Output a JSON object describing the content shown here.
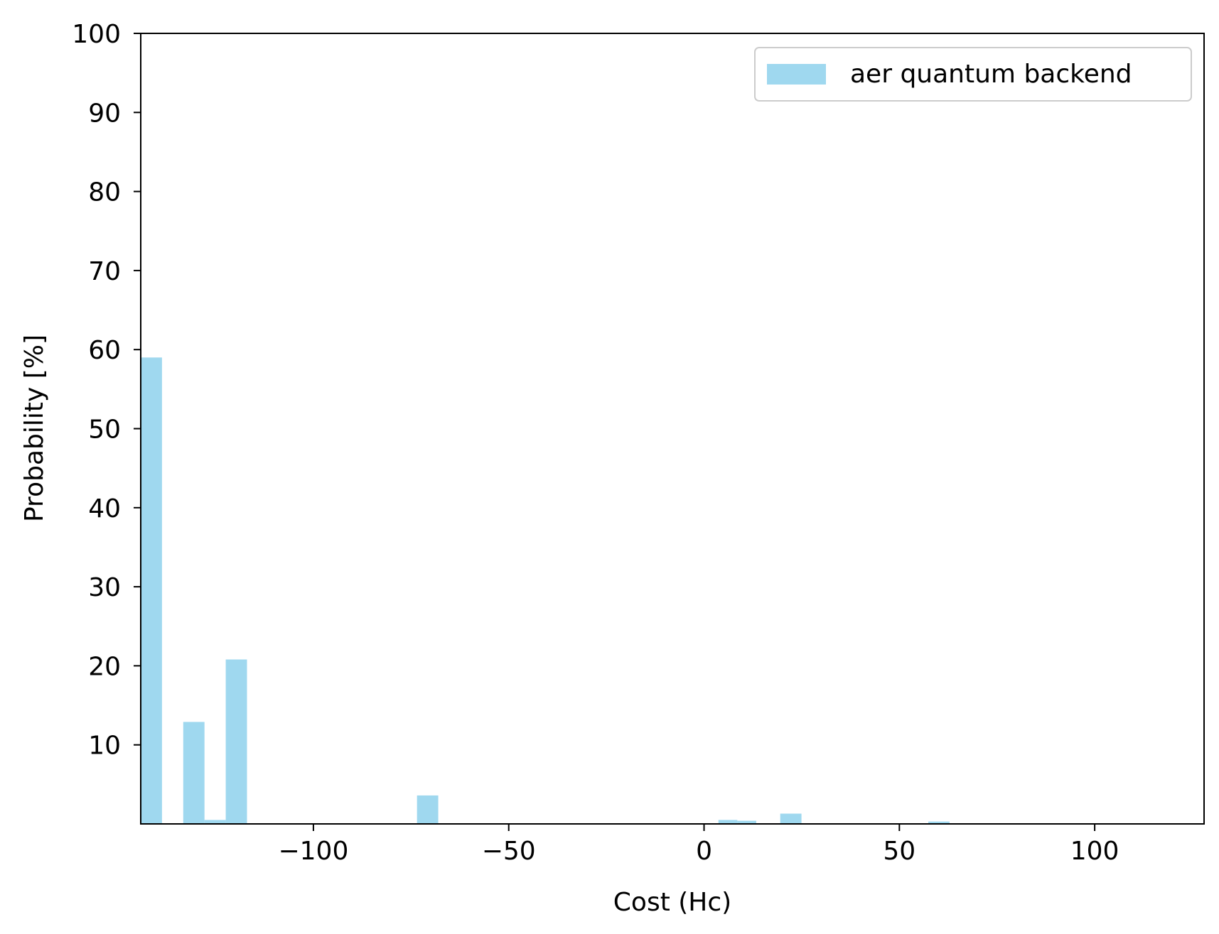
{
  "chart_data": {
    "type": "bar",
    "xlabel": "Cost (Hc)",
    "ylabel": "Probability [%]",
    "xlim": [
      -144.2,
      128.0
    ],
    "ylim": [
      0,
      100
    ],
    "xticks": [
      -100,
      -50,
      0,
      50,
      100
    ],
    "xtick_labels": [
      "−100",
      "−50",
      "0",
      "50",
      "100"
    ],
    "yticks": [
      10,
      20,
      30,
      40,
      50,
      60,
      70,
      80,
      90,
      100
    ],
    "ytick_labels": [
      "10",
      "20",
      "30",
      "40",
      "50",
      "60",
      "70",
      "80",
      "90",
      "100"
    ],
    "bin_width": 5.44,
    "grid": false,
    "legend": {
      "position": "top-right"
    },
    "series": [
      {
        "name": "aer quantum backend",
        "color": "#87ceeb",
        "alpha": 0.8,
        "bins": [
          {
            "x0": -144.2,
            "x1": -138.76,
            "value": 59.0
          },
          {
            "x0": -133.32,
            "x1": -127.88,
            "value": 12.9
          },
          {
            "x0": -127.88,
            "x1": -122.44,
            "value": 0.5
          },
          {
            "x0": -122.44,
            "x1": -117.0,
            "value": 20.8
          },
          {
            "x0": -73.48,
            "x1": -68.04,
            "value": 3.6
          },
          {
            "x0": 3.68,
            "x1": 8.52,
            "value": 0.5
          },
          {
            "x0": 8.52,
            "x1": 13.36,
            "value": 0.4
          },
          {
            "x0": 19.5,
            "x1": 24.94,
            "value": 1.3
          },
          {
            "x0": 57.4,
            "x1": 62.84,
            "value": 0.3
          }
        ]
      }
    ]
  }
}
